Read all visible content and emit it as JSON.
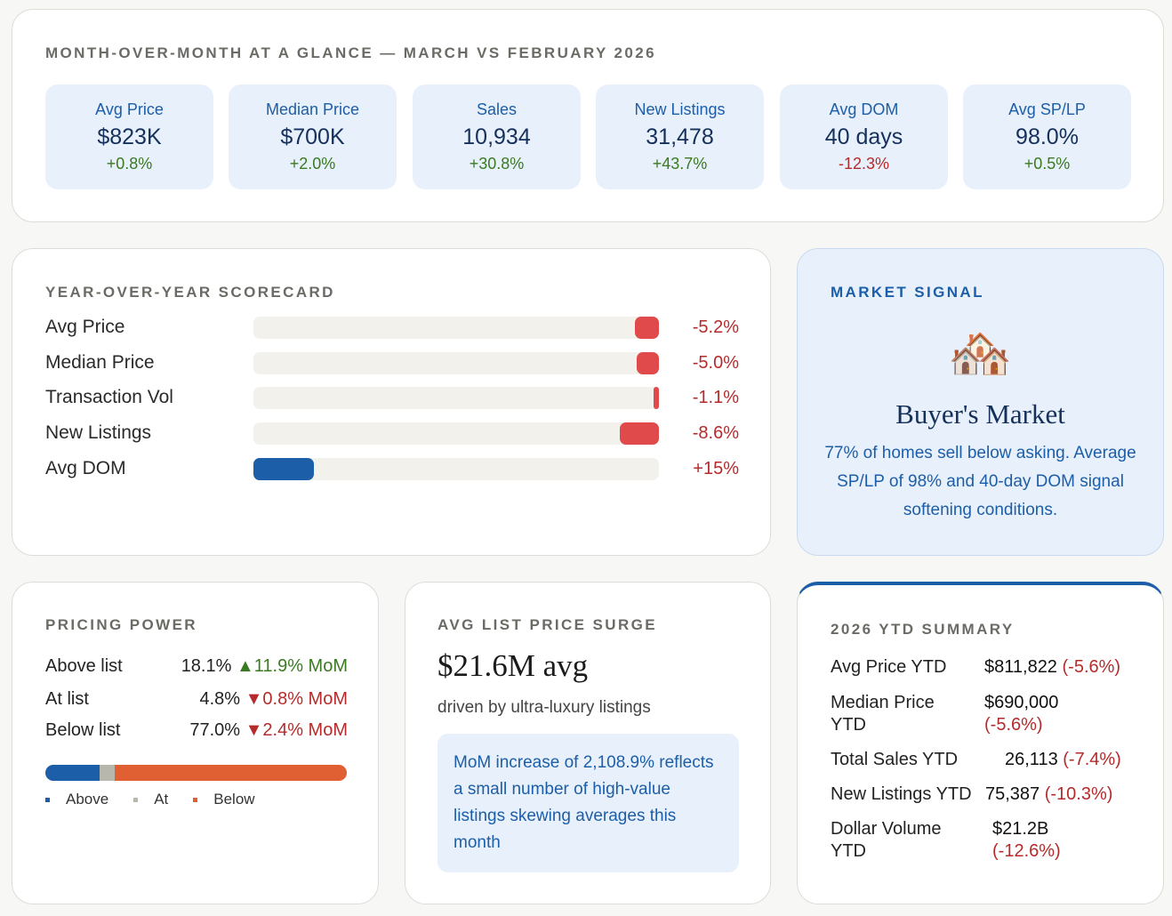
{
  "mom": {
    "title": "MONTH-OVER-MONTH AT A GLANCE — MARCH VS FEBRUARY 2026",
    "tiles": [
      {
        "name": "Avg Price",
        "value": "$823K",
        "change": "+0.8%",
        "dir": "pos"
      },
      {
        "name": "Median Price",
        "value": "$700K",
        "change": "+2.0%",
        "dir": "pos"
      },
      {
        "name": "Sales",
        "value": "10,934",
        "change": "+30.8%",
        "dir": "pos"
      },
      {
        "name": "New Listings",
        "value": "31,478",
        "change": "+43.7%",
        "dir": "pos"
      },
      {
        "name": "Avg DOM",
        "value": "40 days",
        "change": "-12.3%",
        "dir": "neg"
      },
      {
        "name": "Avg SP/LP",
        "value": "98.0%",
        "change": "+0.5%",
        "dir": "pos"
      }
    ]
  },
  "yoy": {
    "title": "YEAR-OVER-YEAR SCORECARD",
    "rows": [
      {
        "name": "Avg Price",
        "value": "-5.2%",
        "magnitude": 0.052
      },
      {
        "name": "Median Price",
        "value": "-5.0%",
        "magnitude": 0.05
      },
      {
        "name": "Transaction Vol",
        "value": "-1.1%",
        "magnitude": 0.011
      },
      {
        "name": "New Listings",
        "value": "-8.6%",
        "magnitude": 0.086
      },
      {
        "name": "Avg DOM",
        "value": "+15%",
        "magnitude": 0.15
      }
    ],
    "colors": {
      "negative": "#e04a4a",
      "positive": "#1d5ea8"
    }
  },
  "signal": {
    "title": "MARKET SIGNAL",
    "icon": "houses-icon",
    "heading": "Buyer's Market",
    "text": "77% of homes sell below asking. Average SP/LP of 98% and 40-day DOM signal softening conditions."
  },
  "pricing": {
    "title": "PRICING POWER",
    "rows": [
      {
        "name": "Above list",
        "value": "18.1%",
        "arrow": "▲",
        "change": "11.9% MoM",
        "dir": "pos"
      },
      {
        "name": "At list",
        "value": "4.8%",
        "arrow": "▼",
        "change": "0.8% MoM",
        "dir": "neg"
      },
      {
        "name": "Below list",
        "value": "77.0%",
        "arrow": "▼",
        "change": "2.4% MoM",
        "dir": "neg"
      }
    ],
    "shares": [
      0.181,
      0.048,
      0.77
    ],
    "legend": [
      {
        "label": "Above",
        "color": "#1d5ea8"
      },
      {
        "label": "At",
        "color": "#b7b7ae"
      },
      {
        "label": "Below",
        "color": "#e06034"
      }
    ]
  },
  "surge": {
    "title": "AVG LIST PRICE SURGE",
    "value": "$21.6M avg",
    "subtitle": "driven by ultra-luxury listings",
    "note": "MoM increase of 2,108.9% reflects a small number of high-value listings skewing averages this month"
  },
  "ytd": {
    "title": "2026 YTD SUMMARY",
    "rows": [
      {
        "name": "Avg Price YTD",
        "value": "$811,822",
        "change": "(-5.6%)"
      },
      {
        "name": "Median Price YTD",
        "value": "$690,000",
        "change": "(-5.6%)"
      },
      {
        "name": "Total Sales YTD",
        "value": "26,113",
        "change": "(-7.4%)"
      },
      {
        "name": "New Listings YTD",
        "value": "75,387",
        "change": "(-10.3%)"
      },
      {
        "name": "Dollar Volume YTD",
        "value": "$21.2B",
        "change": "(-12.6%)"
      }
    ]
  }
}
